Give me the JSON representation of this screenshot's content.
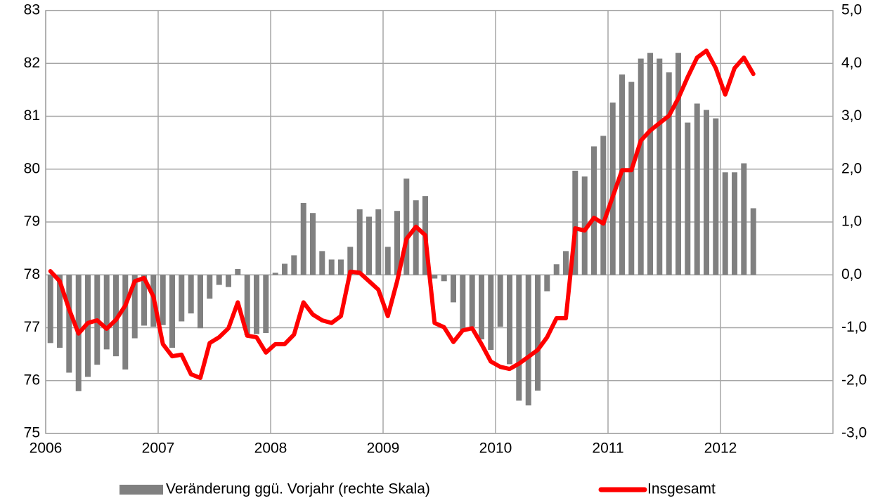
{
  "chart_data": {
    "type": "bar_line",
    "x": [
      2006.042,
      2006.125,
      2006.208,
      2006.292,
      2006.375,
      2006.458,
      2006.542,
      2006.625,
      2006.708,
      2006.792,
      2006.875,
      2006.958,
      2007.042,
      2007.125,
      2007.208,
      2007.292,
      2007.375,
      2007.458,
      2007.542,
      2007.625,
      2007.708,
      2007.792,
      2007.875,
      2007.958,
      2008.042,
      2008.125,
      2008.208,
      2008.292,
      2008.375,
      2008.458,
      2008.542,
      2008.625,
      2008.708,
      2008.792,
      2008.875,
      2008.958,
      2009.042,
      2009.125,
      2009.208,
      2009.292,
      2009.375,
      2009.458,
      2009.542,
      2009.625,
      2009.708,
      2009.792,
      2009.875,
      2009.958,
      2010.042,
      2010.125,
      2010.208,
      2010.292,
      2010.375,
      2010.458,
      2010.542,
      2010.625,
      2010.708,
      2010.792,
      2010.875,
      2010.958,
      2011.042,
      2011.125,
      2011.208,
      2011.292,
      2011.375,
      2011.458,
      2011.542,
      2011.625,
      2011.708,
      2011.792,
      2011.875,
      2011.958,
      2012.042,
      2012.125,
      2012.208,
      2012.292
    ],
    "series": [
      {
        "name": "Veränderung ggü. Vorjahr (rechte Skala)",
        "color": "#808080",
        "axis": "y2",
        "type": "bar",
        "values": [
          -1.29,
          -1.38,
          -1.85,
          -2.2,
          -1.93,
          -1.7,
          -1.41,
          -1.54,
          -1.79,
          -1.2,
          -0.96,
          -0.98,
          -0.95,
          -1.38,
          -0.88,
          -0.73,
          -1.01,
          -0.45,
          -0.19,
          -0.23,
          0.11,
          -1.14,
          -1.12,
          -1.1,
          0.04,
          0.21,
          0.37,
          1.36,
          1.17,
          0.45,
          0.29,
          0.29,
          0.53,
          1.24,
          1.1,
          1.24,
          0.53,
          1.21,
          1.82,
          1.41,
          1.49,
          -0.07,
          -0.12,
          -0.52,
          -1.05,
          -0.98,
          -1.22,
          -1.42,
          -0.98,
          -1.69,
          -2.38,
          -2.47,
          -2.19,
          -0.31,
          0.2,
          0.45,
          1.97,
          1.86,
          2.43,
          2.63,
          3.26,
          3.79,
          3.65,
          4.09,
          4.2,
          4.09,
          3.83,
          4.2,
          2.88,
          3.24,
          3.12,
          2.96,
          1.94,
          1.94,
          2.11,
          1.26
        ]
      },
      {
        "name": "Insgesamt",
        "color": "#ff0000",
        "type": "line",
        "values": [
          78.07,
          77.88,
          77.35,
          76.89,
          77.09,
          77.14,
          76.98,
          77.15,
          77.42,
          77.88,
          77.94,
          77.59,
          76.69,
          76.46,
          76.49,
          76.12,
          76.05,
          76.71,
          76.82,
          76.99,
          77.48,
          76.85,
          76.82,
          76.53,
          76.69,
          76.69,
          76.87,
          77.48,
          77.25,
          77.14,
          77.09,
          77.22,
          78.06,
          78.04,
          77.88,
          77.72,
          77.22,
          77.88,
          78.68,
          78.91,
          78.75,
          77.09,
          77.01,
          76.73,
          76.95,
          76.99,
          76.69,
          76.36,
          76.26,
          76.22,
          76.32,
          76.45,
          76.58,
          76.82,
          77.18,
          77.18,
          78.88,
          78.84,
          79.08,
          78.97,
          79.48,
          79.98,
          79.98,
          80.54,
          80.73,
          80.87,
          81.01,
          81.34,
          81.74,
          82.11,
          82.24,
          81.91,
          81.41,
          81.91,
          82.11,
          81.8
        ]
      }
    ],
    "xlim": [
      2006,
      2013
    ],
    "xticks": [
      2006,
      2007,
      2008,
      2009,
      2010,
      2011,
      2012
    ],
    "ylim": [
      75,
      83
    ],
    "yticks": [
      75,
      76,
      77,
      78,
      79,
      80,
      81,
      82,
      83
    ],
    "y2lim": [
      -3,
      5
    ],
    "y2ticks": [
      {
        "value": -3,
        "label": "-3,0"
      },
      {
        "value": -2,
        "label": "-2,0"
      },
      {
        "value": -1,
        "label": "-1,0"
      },
      {
        "value": 0,
        "label": "0,0"
      },
      {
        "value": 1,
        "label": "1,0"
      },
      {
        "value": 2,
        "label": "2,0"
      },
      {
        "value": 3,
        "label": "3,0"
      },
      {
        "value": 4,
        "label": "4,0"
      },
      {
        "value": 5,
        "label": "5,0"
      }
    ],
    "grid": true,
    "legend": "bottom"
  }
}
